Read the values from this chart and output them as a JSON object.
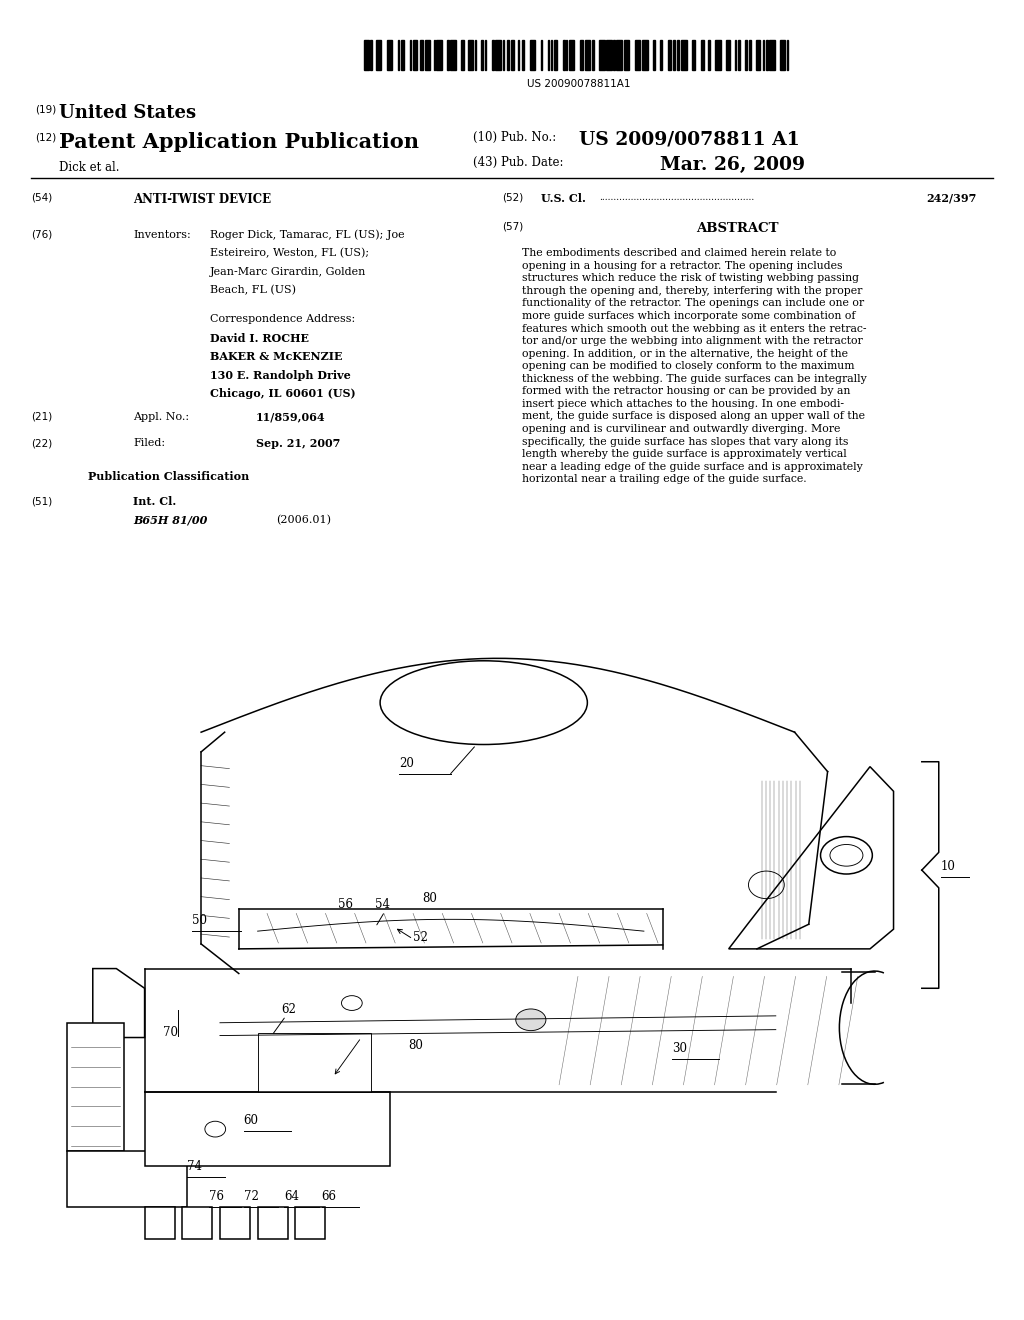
{
  "bg_color": "#ffffff",
  "barcode_text": "US 20090078811A1",
  "header_19": "(19)",
  "header_19_text": "United States",
  "header_12": "(12)",
  "header_12_text": "Patent Application Publication",
  "header_10_label": "(10) Pub. No.:",
  "header_10_value": "US 2009/0078811 A1",
  "header_43_label": "(43) Pub. Date:",
  "header_43_value": "Mar. 26, 2009",
  "header_author": "Dick et al.",
  "section_54_label": "(54)",
  "section_54_title": "ANTI-TWIST DEVICE",
  "section_76_label": "(76)",
  "section_76_title": "Inventors:",
  "inv_line1": "Roger Dick, Tamarac, FL (US); Joe",
  "inv_line2": "Esteireiro, Weston, FL (US);",
  "inv_line3": "Jean-Marc Girardin, Golden",
  "inv_line4": "Beach, FL (US)",
  "corr_address_label": "Correspondence Address:",
  "corr_line1": "David I. ROCHE",
  "corr_line2": "BAKER & McKENZIE",
  "corr_line3": "130 E. Randolph Drive",
  "corr_line4": "Chicago, IL 60601 (US)",
  "section_21_label": "(21)",
  "section_21_title": "Appl. No.:",
  "section_21_value": "11/859,064",
  "section_22_label": "(22)",
  "section_22_title": "Filed:",
  "section_22_value": "Sep. 21, 2007",
  "pub_class_title": "Publication Classification",
  "section_51_label": "(51)",
  "section_51_title": "Int. Cl.",
  "section_51_class": "B65H 81/00",
  "section_51_year": "(2006.01)",
  "section_52_label": "(52)",
  "section_52_title": "U.S. Cl.",
  "section_52_dots": "......................................................",
  "section_52_value": "242/397",
  "section_57_label": "(57)",
  "section_57_title": "ABSTRACT",
  "abstract_text": "The embodiments described and claimed herein relate to\nopening in a housing for a retractor. The opening includes\nstructures which reduce the risk of twisting webbing passing\nthrough the opening and, thereby, interfering with the proper\nfunctionality of the retractor. The openings can include one or\nmore guide surfaces which incorporate some combination of\nfeatures which smooth out the webbing as it enters the retrac-\ntor and/or urge the webbing into alignment with the retractor\nopening. In addition, or in the alternative, the height of the\nopening can be modified to closely conform to the maximum\nthickness of the webbing. The guide surfaces can be integrally\nformed with the retractor housing or can be provided by an\ninsert piece which attaches to the housing. In one embodi-\nment, the guide surface is disposed along an upper wall of the\nopening and is curvilinear and outwardly diverging. More\nspecifically, the guide surface has slopes that vary along its\nlength whereby the guide surface is approximately vertical\nnear a leading edge of the guide surface and is approximately\nhorizontal near a trailing edge of the guide surface."
}
